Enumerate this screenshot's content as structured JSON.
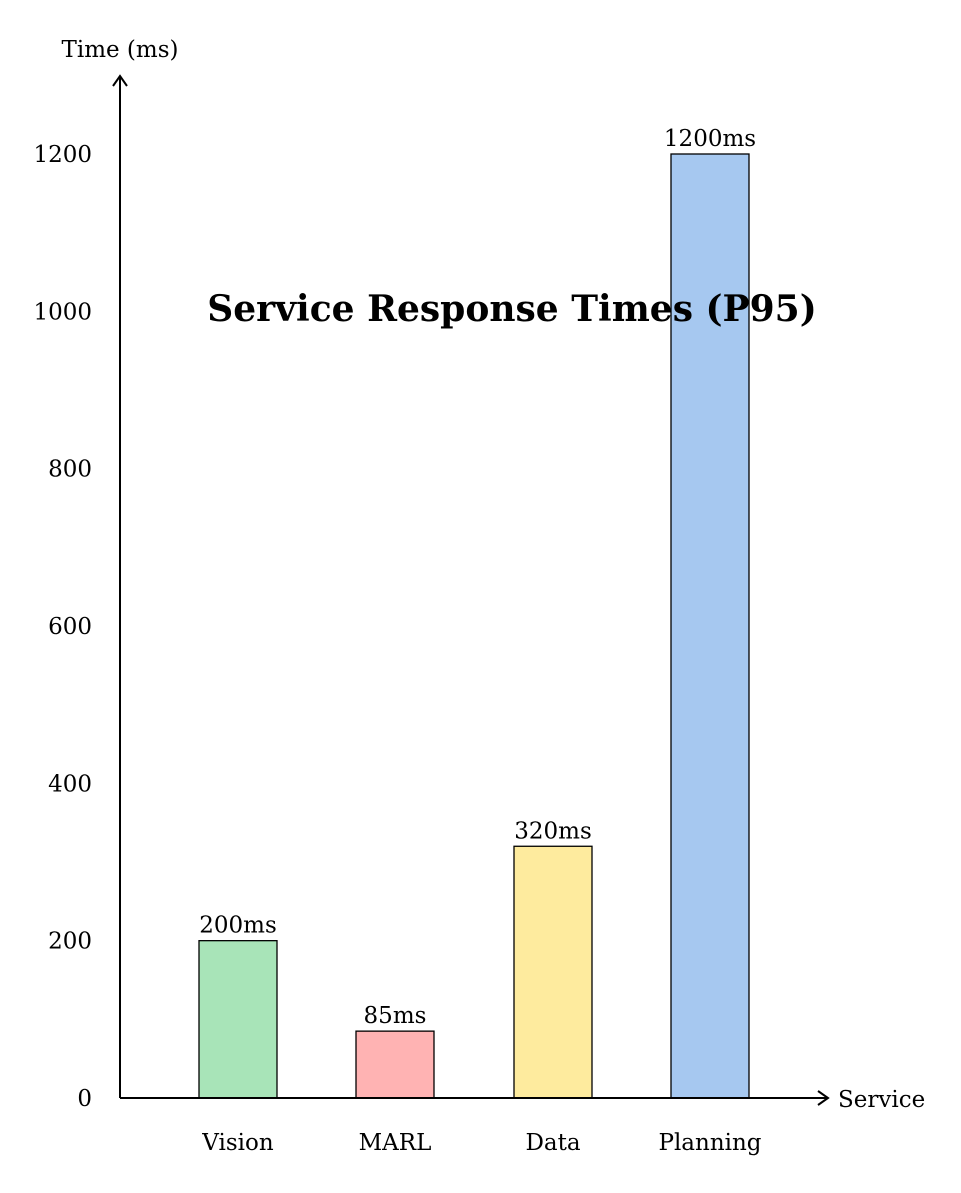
{
  "chart_data": {
    "type": "bar",
    "title": "Service Response Times (P95)",
    "xlabel": "Service",
    "ylabel": "Time (ms)",
    "categories": [
      "Vision",
      "MARL",
      "Data",
      "Planning"
    ],
    "values": [
      200,
      85,
      320,
      1200
    ],
    "data_labels": [
      "200ms",
      "85ms",
      "320ms",
      "1200ms"
    ],
    "colors": [
      "#a8e4b8",
      "#ffb3b3",
      "#feeb9e",
      "#a6c8f0"
    ],
    "y_ticks": [
      0,
      200,
      400,
      600,
      800,
      1000,
      1200
    ],
    "ylim": [
      0,
      1300
    ],
    "grid": false
  }
}
